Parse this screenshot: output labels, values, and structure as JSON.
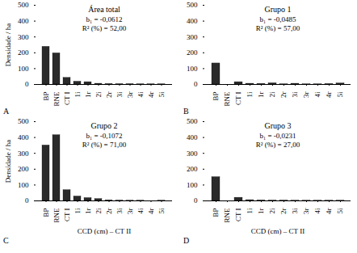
{
  "chart_data": [
    {
      "type": "bar",
      "label": "A",
      "title": "Área total",
      "annotations": [
        "b₁ = -0,0612",
        "R² (%) = 52,00"
      ],
      "categories": [
        "BP",
        "RNE",
        "CT I",
        "1i",
        "1r",
        "2i",
        "2r",
        "3i",
        "3r",
        "4i",
        "4r",
        "5i"
      ],
      "values": [
        238,
        197,
        42,
        18,
        15,
        5,
        3,
        2,
        2,
        1,
        1,
        1
      ],
      "color": "#2a2a2a",
      "ylim": [
        0,
        500
      ],
      "yticks": [
        0,
        100,
        200,
        300,
        400,
        500
      ],
      "ylabel": "Densidade / ha"
    },
    {
      "type": "bar",
      "label": "B",
      "title": "Grupo 1",
      "annotations": [
        "b₁ = -0,0485",
        "R² (%) = 57,00"
      ],
      "categories": [
        "BP",
        "RNE",
        "CT I",
        "1i",
        "1r",
        "2i",
        "2r",
        "3i",
        "3r",
        "4i",
        "4r",
        "5i"
      ],
      "values": [
        133,
        0,
        15,
        5,
        4,
        8,
        1,
        5,
        1,
        1,
        3,
        7
      ],
      "color": "#2a2a2a",
      "ylim": [
        0,
        500
      ],
      "yticks": [
        0,
        100,
        200,
        300,
        400,
        500
      ]
    },
    {
      "type": "bar",
      "label": "C",
      "title": "Grupo 2",
      "annotations": [
        "b₁ = -0,1072",
        "R² (%) = 71,00"
      ],
      "categories": [
        "BP",
        "RNE",
        "CT I",
        "1i",
        "1r",
        "2i",
        "2r",
        "3i",
        "3r",
        "4i",
        "4r",
        "5i"
      ],
      "values": [
        350,
        415,
        68,
        28,
        18,
        12,
        4,
        2,
        1,
        1,
        0,
        1
      ],
      "color": "#2a2a2a",
      "ylim": [
        0,
        500
      ],
      "yticks": [
        0,
        100,
        200,
        300,
        400,
        500
      ],
      "ylabel": "Densidade / ha",
      "xlabel": "CCD (cm) – CT II"
    },
    {
      "type": "bar",
      "label": "D",
      "title": "Grupo 3",
      "annotations": [
        "b₁ = -0,0231",
        "R² (%) = 27,00"
      ],
      "categories": [
        "BP",
        "RNE",
        "CT I",
        "1i",
        "1r",
        "2i",
        "2r",
        "3i",
        "3r",
        "4i",
        "4r",
        "5i"
      ],
      "values": [
        150,
        0,
        20,
        5,
        3,
        2,
        2,
        1,
        1,
        1,
        1,
        1
      ],
      "color": "#2a2a2a",
      "ylim": [
        0,
        500
      ],
      "yticks": [
        0,
        100,
        200,
        300,
        400,
        500
      ],
      "xlabel": "CCD (cm) – CT II"
    }
  ]
}
